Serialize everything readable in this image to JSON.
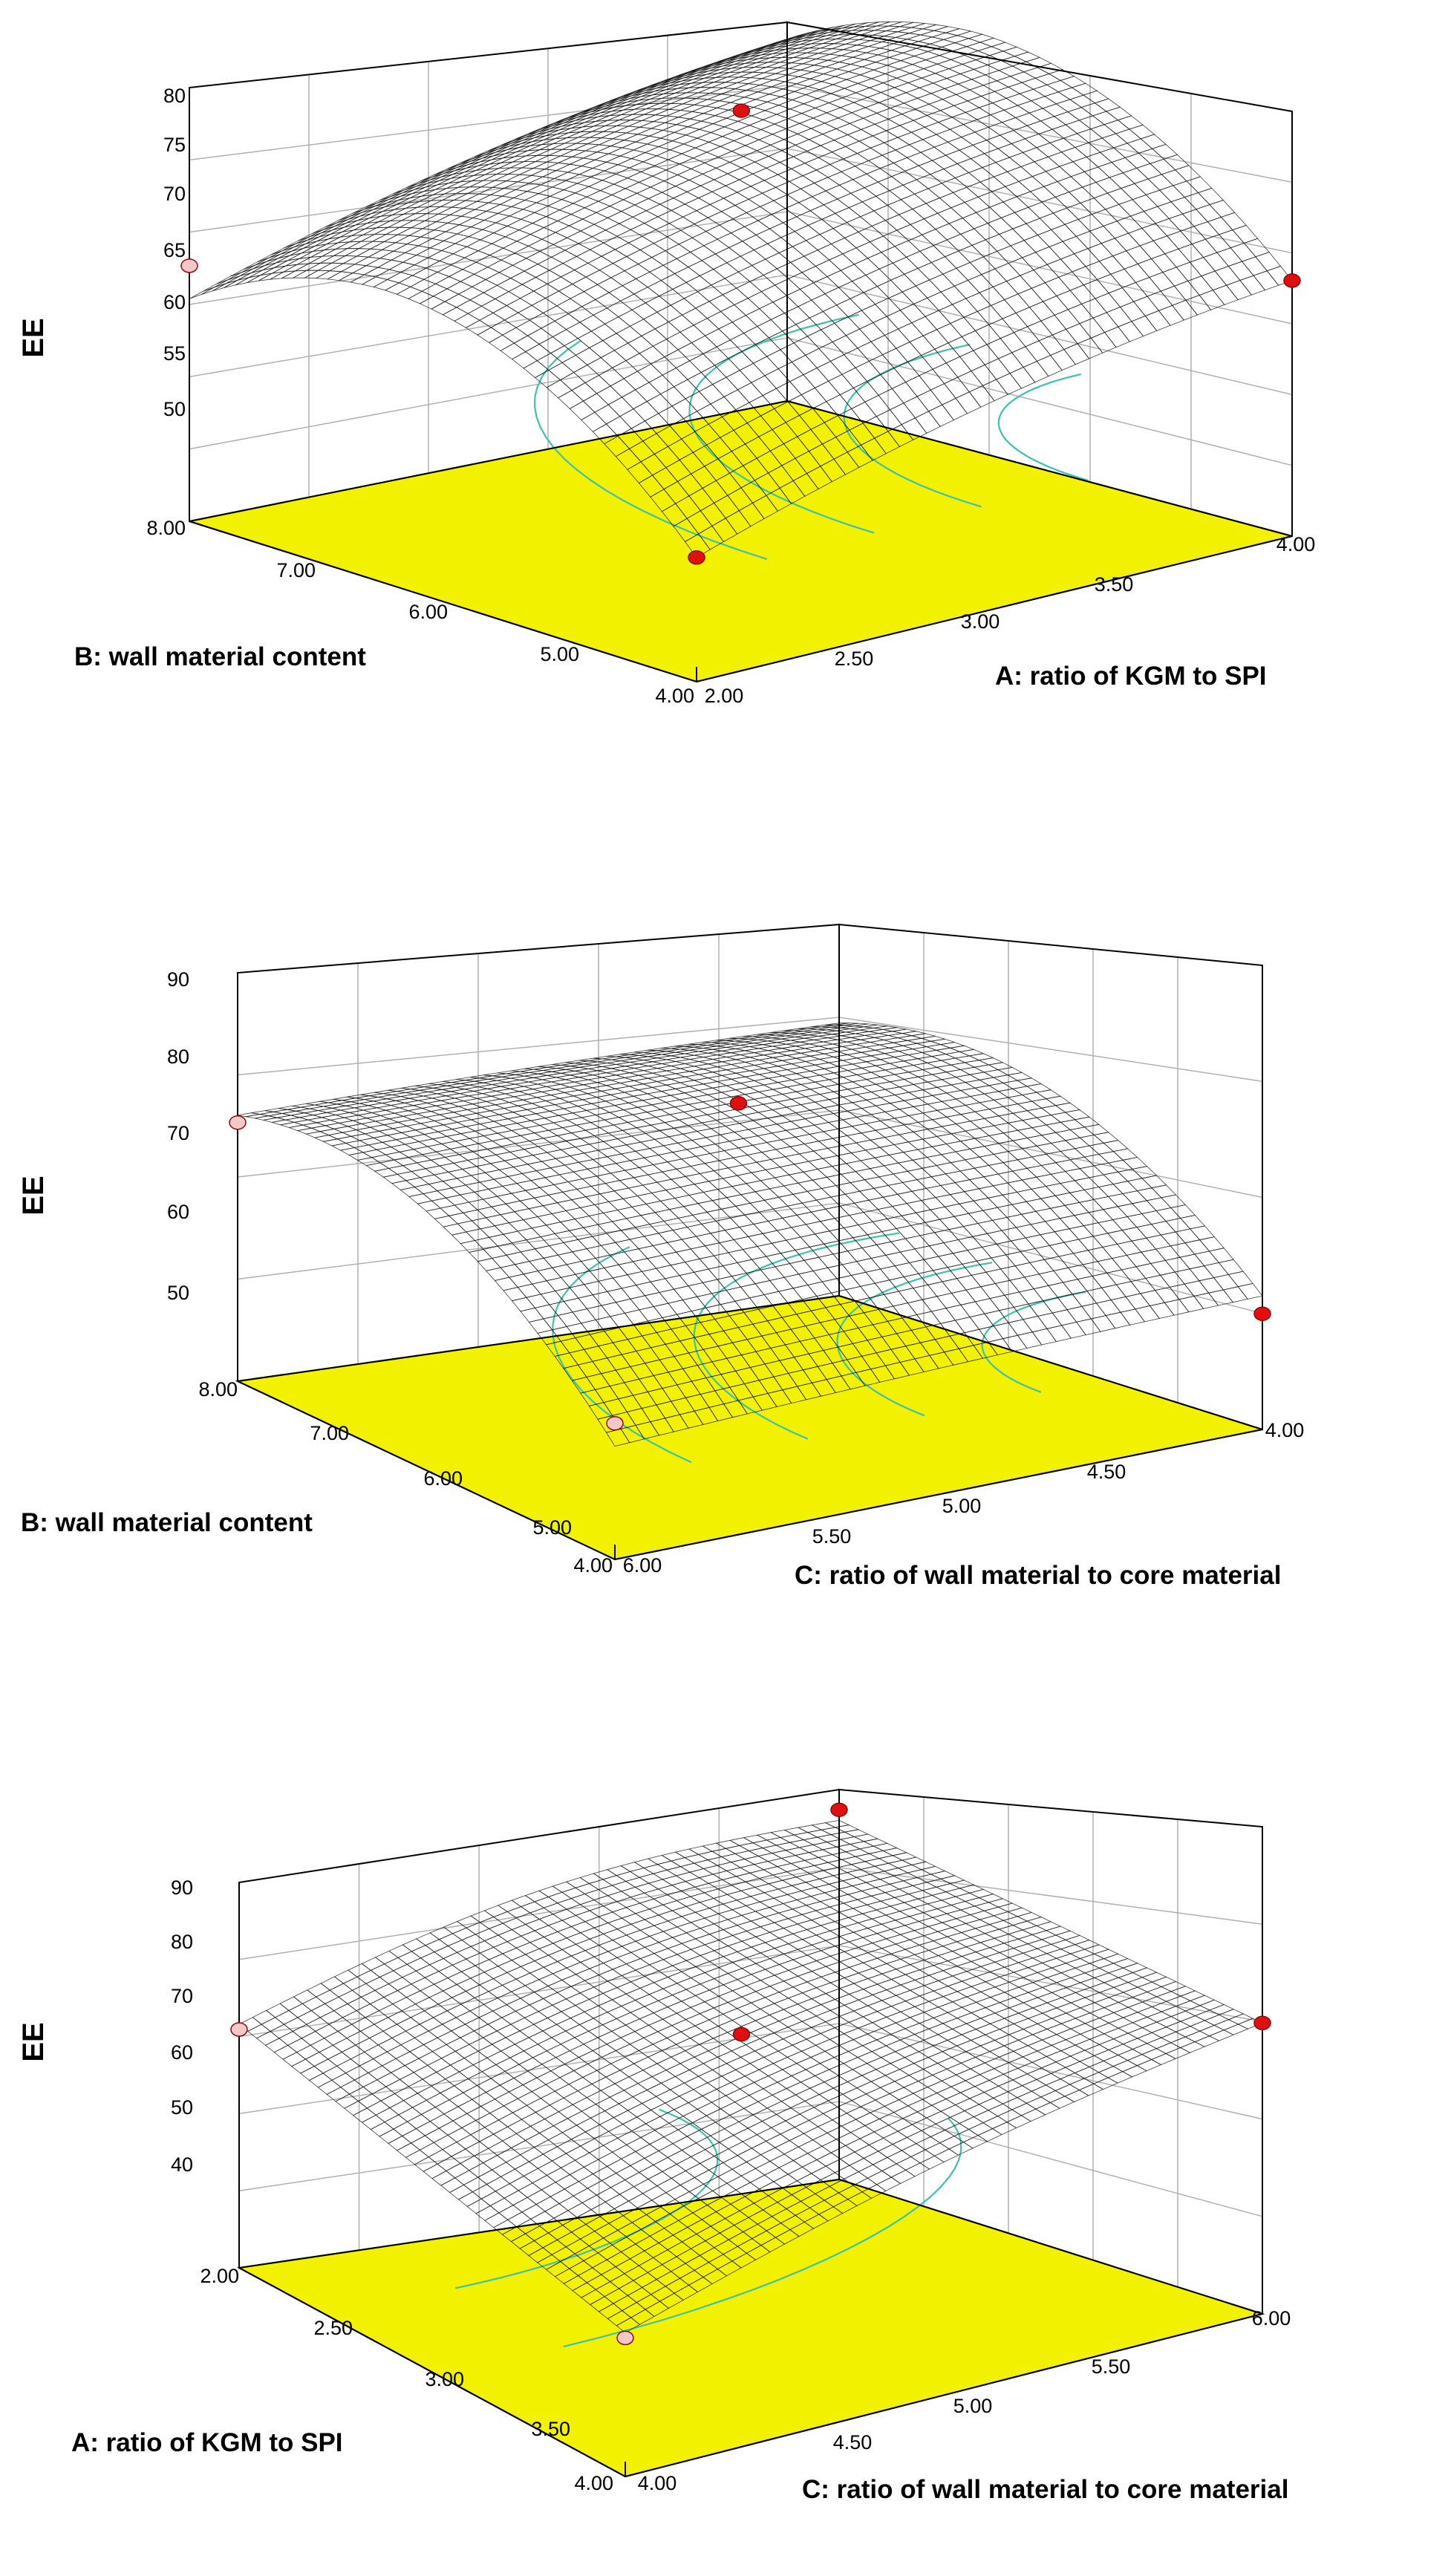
{
  "chart_data": [
    {
      "type": "surface",
      "zlabel": "EE",
      "xlabel": "A: ratio of KGM to SPI",
      "ylabel": "B: wall material content",
      "x_ticks": [
        "2.00",
        "2.50",
        "3.00",
        "3.50",
        "4.00"
      ],
      "y_ticks": [
        "4.00",
        "5.00",
        "6.00",
        "7.00",
        "8.00"
      ],
      "z_ticks": [
        "50",
        "55",
        "60",
        "65",
        "70",
        "75",
        "80"
      ],
      "xlim": [
        2,
        4
      ],
      "ylim": [
        4,
        8
      ],
      "zlim": [
        45,
        80
      ],
      "colormap": [
        "#1030d0",
        "#18c0d8",
        "#30c030",
        "#d8d040",
        "#c06020",
        "#a02010"
      ],
      "floor_color": "#f2f200",
      "surface_corners": {
        "A2.00_B4.00": 47,
        "A4.00_B4.00": 61,
        "A2.00_B8.00": 63,
        "A4.00_B8.00": 64
      },
      "design_points": [
        {
          "A": 3.0,
          "B": 6.0,
          "EE": 79,
          "marker": "red"
        },
        {
          "A": 4.0,
          "B": 4.0,
          "EE": 61,
          "marker": "red"
        },
        {
          "A": 2.0,
          "B": 4.0,
          "EE": 47,
          "marker": "red"
        },
        {
          "A": 2.0,
          "B": 8.0,
          "EE": 61,
          "marker": "pink"
        }
      ]
    },
    {
      "type": "surface",
      "zlabel": "EE",
      "xlabel": "C: ratio of wall material to core material",
      "ylabel": "B: wall material content",
      "x_ticks": [
        "4.00",
        "4.50",
        "5.00",
        "5.50",
        "6.00"
      ],
      "y_ticks": [
        "4.00",
        "5.00",
        "6.00",
        "7.00",
        "8.00"
      ],
      "z_ticks": [
        "50",
        "60",
        "70",
        "80",
        "90"
      ],
      "xlim": [
        4,
        6
      ],
      "ylim": [
        4,
        8
      ],
      "zlim": [
        42,
        90
      ],
      "colormap": [
        "#18c0d8",
        "#30c030",
        "#d8d040",
        "#c06020",
        "#a02010"
      ],
      "floor_color": "#f2f200",
      "surface_corners": {
        "C6.00_B4.00": 50,
        "C4.00_B4.00": 47,
        "C6.00_B8.00": 69,
        "C4.00_B8.00": 70
      },
      "design_points": [
        {
          "C": 5.0,
          "B": 6.0,
          "EE": 76,
          "marker": "red"
        },
        {
          "C": 4.0,
          "B": 4.0,
          "EE": 47,
          "marker": "red"
        },
        {
          "C": 6.0,
          "B": 4.0,
          "EE": 50,
          "marker": "pink"
        },
        {
          "C": 6.0,
          "B": 8.0,
          "EE": 68,
          "marker": "pink"
        }
      ]
    },
    {
      "type": "surface",
      "zlabel": "EE",
      "xlabel": "C: ratio of wall material to core material",
      "ylabel": "A: ratio of KGM to SPI",
      "x_ticks": [
        "4.50",
        "5.00",
        "5.50",
        "6.00"
      ],
      "y_ticks": [
        "4.00",
        "3.50",
        "3.00",
        "2.50",
        "2.00"
      ],
      "z_ticks": [
        "40",
        "50",
        "60",
        "70",
        "80",
        "90"
      ],
      "xlim": [
        4,
        6
      ],
      "ylim": [
        4,
        2
      ],
      "zlim": [
        35,
        90
      ],
      "corner_labels": [
        "4.00",
        "4.00"
      ],
      "colormap": [
        "#d0e890",
        "#80b840",
        "#507020",
        "#902010",
        "#600808"
      ],
      "floor_color": "#f2f200",
      "surface_corners": {
        "C4.00_A4.00": 44,
        "C6.00_A4.00": 72,
        "C4.00_A2.00": 63,
        "C6.00_A2.00": 85
      },
      "design_points": [
        {
          "C": 6.0,
          "A": 2.0,
          "EE": 87,
          "marker": "red"
        },
        {
          "C": 5.0,
          "A": 3.0,
          "EE": 69,
          "marker": "red"
        },
        {
          "C": 6.0,
          "A": 4.0,
          "EE": 72,
          "marker": "red"
        },
        {
          "C": 4.0,
          "A": 2.0,
          "EE": 62,
          "marker": "pink"
        },
        {
          "C": 4.0,
          "A": 4.0,
          "EE": 43,
          "marker": "pink"
        }
      ]
    }
  ]
}
